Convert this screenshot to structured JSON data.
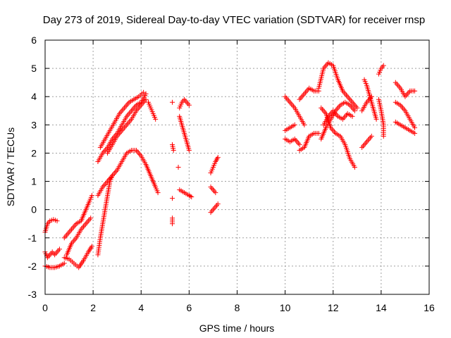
{
  "chart_data": {
    "type": "scatter",
    "title": "Day 273 of 2019, Sidereal Day-to-day VTEC variation (SDTVAR) for receiver rnsp",
    "xlabel": "GPS time / hours",
    "ylabel": "SDTVAR / TECUs",
    "xlim": [
      0,
      16
    ],
    "ylim": [
      -3,
      6
    ],
    "xticks": [
      0,
      2,
      4,
      6,
      8,
      10,
      12,
      14,
      16
    ],
    "yticks": [
      -3,
      -2,
      -1,
      0,
      1,
      2,
      3,
      4,
      5,
      6
    ],
    "xtick_labels": [
      "0",
      "2",
      "4",
      "6",
      "8",
      "10",
      "12",
      "14",
      "16"
    ],
    "ytick_labels": [
      "-3",
      "-2",
      "-1",
      "0",
      "1",
      "2",
      "3",
      "4",
      "5",
      "6"
    ],
    "grid": true,
    "marker": "+",
    "marker_color": "#ff0000",
    "series": [
      {
        "segments": [
          [
            [
              0.0,
              -0.8
            ],
            [
              0.1,
              -0.5
            ],
            [
              0.2,
              -0.4
            ],
            [
              0.35,
              -0.35
            ],
            [
              0.5,
              -0.4
            ]
          ],
          [
            [
              0.0,
              -1.5
            ],
            [
              0.1,
              -1.7
            ],
            [
              0.2,
              -1.6
            ],
            [
              0.3,
              -1.5
            ],
            [
              0.4,
              -1.6
            ],
            [
              0.5,
              -1.5
            ],
            [
              0.6,
              -1.4
            ]
          ],
          [
            [
              0.0,
              -2.0
            ],
            [
              0.2,
              -2.05
            ],
            [
              0.4,
              -2.05
            ],
            [
              0.6,
              -2.0
            ],
            [
              0.8,
              -1.9
            ]
          ],
          [
            [
              0.8,
              -1.0
            ],
            [
              1.0,
              -0.8
            ],
            [
              1.2,
              -0.6
            ],
            [
              1.3,
              -0.5
            ],
            [
              1.5,
              -0.4
            ],
            [
              1.7,
              0.0
            ],
            [
              1.85,
              0.3
            ],
            [
              1.95,
              0.5
            ]
          ],
          [
            [
              0.8,
              -1.7
            ],
            [
              1.0,
              -1.75
            ],
            [
              1.2,
              -1.9
            ],
            [
              1.4,
              -2.05
            ],
            [
              1.6,
              -1.8
            ],
            [
              1.8,
              -1.5
            ],
            [
              1.95,
              -1.3
            ]
          ],
          [
            [
              0.9,
              -1.6
            ],
            [
              1.1,
              -1.2
            ],
            [
              1.3,
              -1.0
            ],
            [
              1.5,
              -0.7
            ],
            [
              1.7,
              -0.5
            ],
            [
              1.9,
              -0.3
            ]
          ],
          [
            [
              2.2,
              -1.6
            ],
            [
              2.3,
              -1.0
            ],
            [
              2.4,
              -0.5
            ],
            [
              2.5,
              0.0
            ],
            [
              2.6,
              0.5
            ],
            [
              2.7,
              1.0
            ],
            [
              2.8,
              1.2
            ]
          ],
          [
            [
              2.2,
              0.5
            ],
            [
              2.4,
              0.8
            ],
            [
              2.6,
              1.0
            ],
            [
              2.8,
              1.2
            ],
            [
              3.0,
              1.4
            ],
            [
              3.2,
              1.7
            ],
            [
              3.4,
              2.0
            ],
            [
              3.6,
              2.1
            ],
            [
              3.8,
              2.1
            ],
            [
              4.0,
              1.9
            ],
            [
              4.2,
              1.6
            ],
            [
              4.4,
              1.2
            ],
            [
              4.6,
              0.8
            ],
            [
              4.7,
              0.6
            ]
          ],
          [
            [
              2.2,
              1.7
            ],
            [
              2.4,
              2.0
            ],
            [
              2.6,
              2.2
            ],
            [
              2.8,
              2.5
            ],
            [
              3.0,
              2.7
            ],
            [
              3.2,
              3.0
            ],
            [
              3.4,
              3.3
            ],
            [
              3.6,
              3.5
            ],
            [
              3.8,
              3.7
            ],
            [
              4.0,
              3.8
            ],
            [
              4.2,
              4.1
            ]
          ],
          [
            [
              2.3,
              2.2
            ],
            [
              2.5,
              2.5
            ],
            [
              2.7,
              2.8
            ],
            [
              2.9,
              3.1
            ],
            [
              3.1,
              3.4
            ],
            [
              3.3,
              3.6
            ],
            [
              3.5,
              3.8
            ],
            [
              3.7,
              3.9
            ],
            [
              3.9,
              4.0
            ],
            [
              4.1,
              4.15
            ]
          ],
          [
            [
              2.6,
              2.0
            ],
            [
              2.8,
              2.3
            ],
            [
              3.0,
              2.6
            ],
            [
              3.2,
              2.8
            ],
            [
              3.4,
              3.0
            ],
            [
              3.6,
              3.2
            ],
            [
              3.8,
              3.5
            ],
            [
              4.0,
              3.7
            ],
            [
              4.2,
              3.9
            ]
          ],
          [
            [
              4.3,
              3.8
            ],
            [
              4.4,
              3.6
            ],
            [
              4.5,
              3.4
            ],
            [
              4.6,
              3.2
            ]
          ],
          [
            [
              5.3,
              3.8
            ]
          ],
          [
            [
              5.3,
              2.3
            ],
            [
              5.35,
              2.1
            ]
          ],
          [
            [
              5.3,
              0.4
            ]
          ],
          [
            [
              5.3,
              -0.3
            ],
            [
              5.3,
              -0.5
            ]
          ],
          [
            [
              5.55,
              1.5
            ]
          ],
          [
            [
              5.6,
              3.6
            ],
            [
              5.7,
              3.8
            ],
            [
              5.8,
              3.9
            ],
            [
              5.9,
              3.8
            ],
            [
              6.0,
              3.7
            ]
          ],
          [
            [
              5.6,
              3.3
            ],
            [
              5.7,
              3.0
            ],
            [
              5.8,
              2.7
            ],
            [
              5.9,
              2.4
            ],
            [
              6.0,
              2.1
            ]
          ],
          [
            [
              5.6,
              0.7
            ],
            [
              5.8,
              0.6
            ],
            [
              6.0,
              0.5
            ],
            [
              6.1,
              0.45
            ]
          ],
          [
            [
              6.9,
              1.3
            ],
            [
              7.0,
              1.5
            ],
            [
              7.1,
              1.7
            ],
            [
              7.2,
              1.85
            ]
          ],
          [
            [
              6.9,
              0.8
            ],
            [
              7.0,
              0.7
            ],
            [
              7.1,
              0.6
            ]
          ],
          [
            [
              6.9,
              -0.1
            ],
            [
              7.0,
              0.0
            ],
            [
              7.1,
              0.1
            ],
            [
              7.2,
              0.2
            ]
          ],
          [
            [
              10.0,
              4.0
            ],
            [
              10.2,
              3.8
            ],
            [
              10.4,
              3.6
            ],
            [
              10.6,
              3.3
            ],
            [
              10.8,
              3.0
            ]
          ],
          [
            [
              10.0,
              2.8
            ],
            [
              10.2,
              2.9
            ],
            [
              10.4,
              3.0
            ]
          ],
          [
            [
              10.0,
              2.5
            ],
            [
              10.2,
              2.4
            ],
            [
              10.4,
              2.5
            ],
            [
              10.6,
              2.3
            ]
          ],
          [
            [
              10.6,
              3.9
            ],
            [
              10.8,
              4.1
            ],
            [
              11.0,
              4.3
            ],
            [
              11.2,
              4.2
            ],
            [
              11.4,
              4.2
            ]
          ],
          [
            [
              10.6,
              2.1
            ],
            [
              10.8,
              2.2
            ],
            [
              11.0,
              2.6
            ],
            [
              11.2,
              2.7
            ],
            [
              11.4,
              2.7
            ]
          ],
          [
            [
              11.4,
              4.3
            ],
            [
              11.6,
              5.0
            ],
            [
              11.8,
              5.2
            ],
            [
              12.0,
              5.1
            ],
            [
              12.2,
              4.6
            ],
            [
              12.4,
              4.2
            ],
            [
              12.6,
              4.0
            ],
            [
              12.8,
              3.8
            ],
            [
              13.0,
              3.6
            ]
          ],
          [
            [
              11.5,
              2.5
            ],
            [
              11.7,
              2.9
            ],
            [
              11.9,
              3.2
            ],
            [
              12.1,
              3.5
            ],
            [
              12.3,
              3.7
            ],
            [
              12.5,
              3.8
            ],
            [
              12.7,
              3.7
            ],
            [
              12.9,
              3.5
            ]
          ],
          [
            [
              11.5,
              3.6
            ],
            [
              11.7,
              3.4
            ],
            [
              11.9,
              2.9
            ],
            [
              12.1,
              2.7
            ],
            [
              12.3,
              2.6
            ],
            [
              12.5,
              2.3
            ],
            [
              12.7,
              1.8
            ],
            [
              12.9,
              1.5
            ]
          ],
          [
            [
              11.6,
              3.0
            ],
            [
              11.8,
              3.3
            ],
            [
              12.0,
              3.5
            ],
            [
              12.2,
              3.3
            ],
            [
              12.4,
              3.2
            ],
            [
              12.6,
              3.4
            ],
            [
              12.8,
              3.3
            ]
          ],
          [
            [
              13.2,
              2.2
            ],
            [
              13.4,
              2.4
            ],
            [
              13.6,
              2.6
            ]
          ],
          [
            [
              13.3,
              4.6
            ],
            [
              13.4,
              4.4
            ],
            [
              13.5,
              4.1
            ],
            [
              13.6,
              3.8
            ],
            [
              13.7,
              3.5
            ],
            [
              13.8,
              3.2
            ]
          ],
          [
            [
              13.2,
              3.5
            ],
            [
              13.4,
              3.8
            ],
            [
              13.6,
              4.0
            ]
          ],
          [
            [
              13.9,
              4.8
            ],
            [
              14.0,
              5.0
            ],
            [
              14.1,
              5.1
            ]
          ],
          [
            [
              13.9,
              3.9
            ],
            [
              14.0,
              3.5
            ],
            [
              14.1,
              3.0
            ],
            [
              14.1,
              2.6
            ]
          ],
          [
            [
              14.6,
              4.5
            ],
            [
              14.8,
              4.3
            ],
            [
              15.0,
              4.0
            ],
            [
              15.2,
              4.2
            ],
            [
              15.4,
              4.2
            ]
          ],
          [
            [
              14.6,
              3.1
            ],
            [
              14.8,
              3.0
            ],
            [
              15.0,
              2.9
            ],
            [
              15.2,
              2.8
            ],
            [
              15.4,
              2.7
            ]
          ],
          [
            [
              14.6,
              3.8
            ],
            [
              14.8,
              3.7
            ],
            [
              15.0,
              3.5
            ],
            [
              15.2,
              3.2
            ],
            [
              15.4,
              2.9
            ]
          ]
        ]
      }
    ]
  }
}
